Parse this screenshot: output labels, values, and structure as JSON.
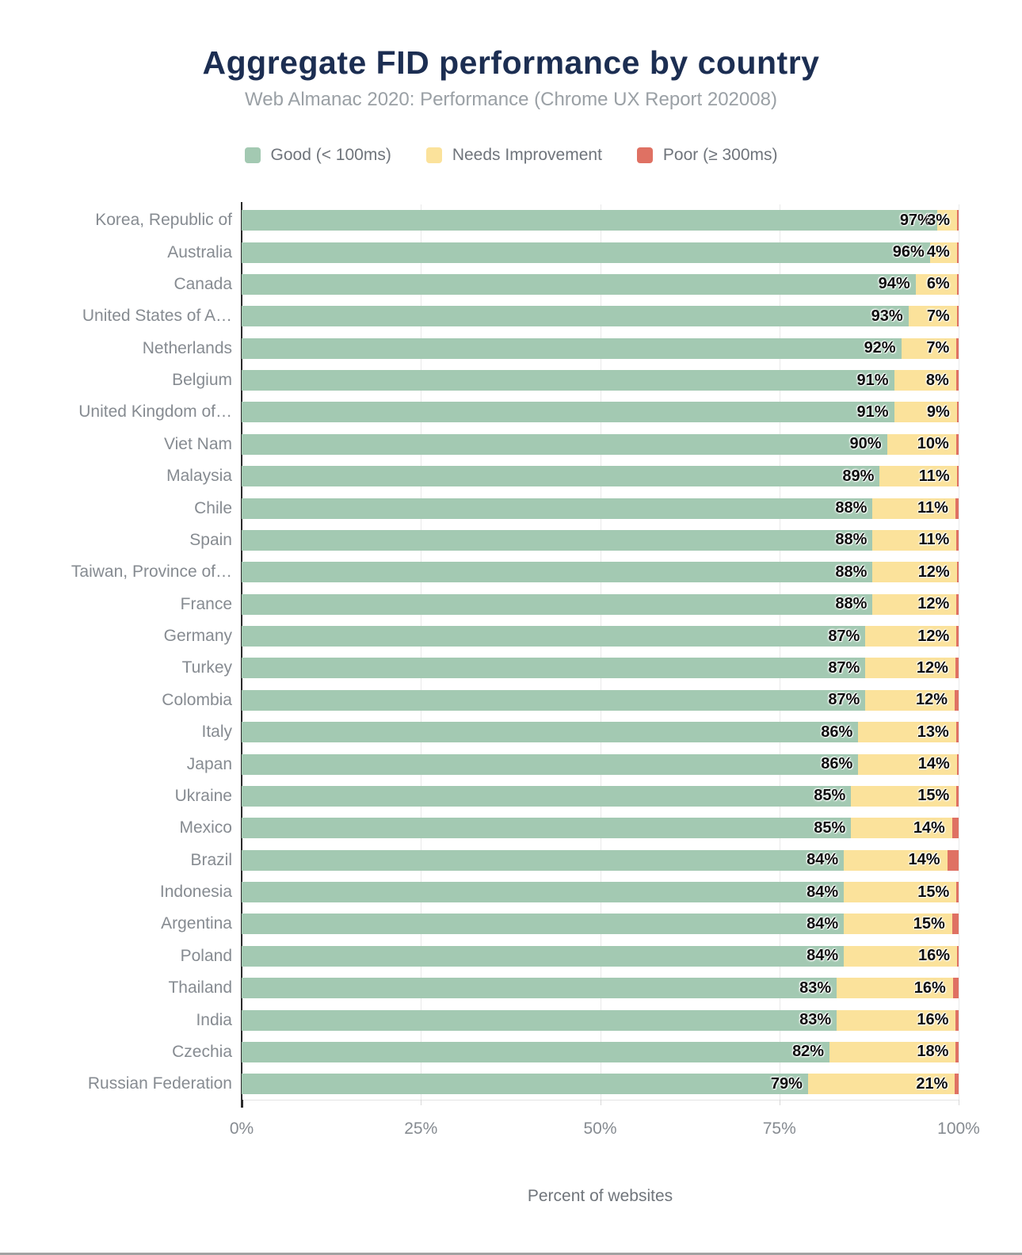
{
  "header": {
    "title": "Aggregate FID performance by country",
    "subtitle": "Web Almanac 2020: Performance (Chrome UX Report 202008)"
  },
  "legend": {
    "items": [
      {
        "label": "Good (< 100ms)",
        "color": "#a3c9b2"
      },
      {
        "label": "Needs Improvement",
        "color": "#fbe29b"
      },
      {
        "label": "Poor (≥ 300ms)",
        "color": "#df7163"
      }
    ]
  },
  "colors": {
    "good": "#a3c9b2",
    "needs_improvement": "#fbe29b",
    "poor": "#df7163",
    "title_text": "#1c2e52",
    "subtitle_text": "#9aa0a5",
    "axis_line": "#2b2b2b",
    "gridline": "#e9e9e9",
    "label_text": "#868b91"
  },
  "chart_data": {
    "type": "bar",
    "orientation": "horizontal",
    "stacked": true,
    "title": "Aggregate FID performance by country",
    "subtitle": "Web Almanac 2020: Performance (Chrome UX Report 202008)",
    "xlabel": "Percent of websites",
    "ylabel": "",
    "xlim": [
      0,
      100
    ],
    "x_ticks": [
      "0%",
      "25%",
      "50%",
      "75%",
      "100%"
    ],
    "x_tick_positions": [
      0,
      25,
      50,
      75,
      100
    ],
    "grid": "vertical",
    "legend_position": "top",
    "value_label_format": "percent",
    "categories": [
      "Korea, Republic of",
      "Australia",
      "Canada",
      "United States of A…",
      "Netherlands",
      "Belgium",
      "United Kingdom of…",
      "Viet Nam",
      "Malaysia",
      "Chile",
      "Spain",
      "Taiwan, Province of…",
      "France",
      "Germany",
      "Turkey",
      "Colombia",
      "Italy",
      "Japan",
      "Ukraine",
      "Mexico",
      "Brazil",
      "Indonesia",
      "Argentina",
      "Poland",
      "Thailand",
      "India",
      "Czechia",
      "Russian Federation"
    ],
    "series": [
      {
        "name": "Good (< 100ms)",
        "values": [
          97,
          96,
          94,
          93,
          92,
          91,
          91,
          90,
          89,
          88,
          88,
          88,
          88,
          87,
          87,
          87,
          86,
          86,
          85,
          85,
          84,
          84,
          84,
          84,
          83,
          83,
          82,
          79
        ],
        "labels_shown": true
      },
      {
        "name": "Needs Improvement",
        "values": [
          3,
          4,
          6,
          7,
          7,
          8,
          9,
          10,
          11,
          11,
          11,
          12,
          12,
          12,
          12,
          12,
          13,
          14,
          15,
          14,
          14,
          15,
          15,
          16,
          16,
          16,
          18,
          21
        ],
        "labels_shown": true
      },
      {
        "name": "Poor (≥ 300ms)",
        "values": [
          0.2,
          0.25,
          0.25,
          0.25,
          0.3,
          0.35,
          0.25,
          0.35,
          0.25,
          0.45,
          0.3,
          0.25,
          0.3,
          0.3,
          0.45,
          0.55,
          0.35,
          0.25,
          0.3,
          0.9,
          1.6,
          0.3,
          0.9,
          0.2,
          0.8,
          0.4,
          0.4,
          0.5
        ],
        "labels_shown": false,
        "note": "estimated from sliver widths; not labeled on chart"
      }
    ]
  }
}
